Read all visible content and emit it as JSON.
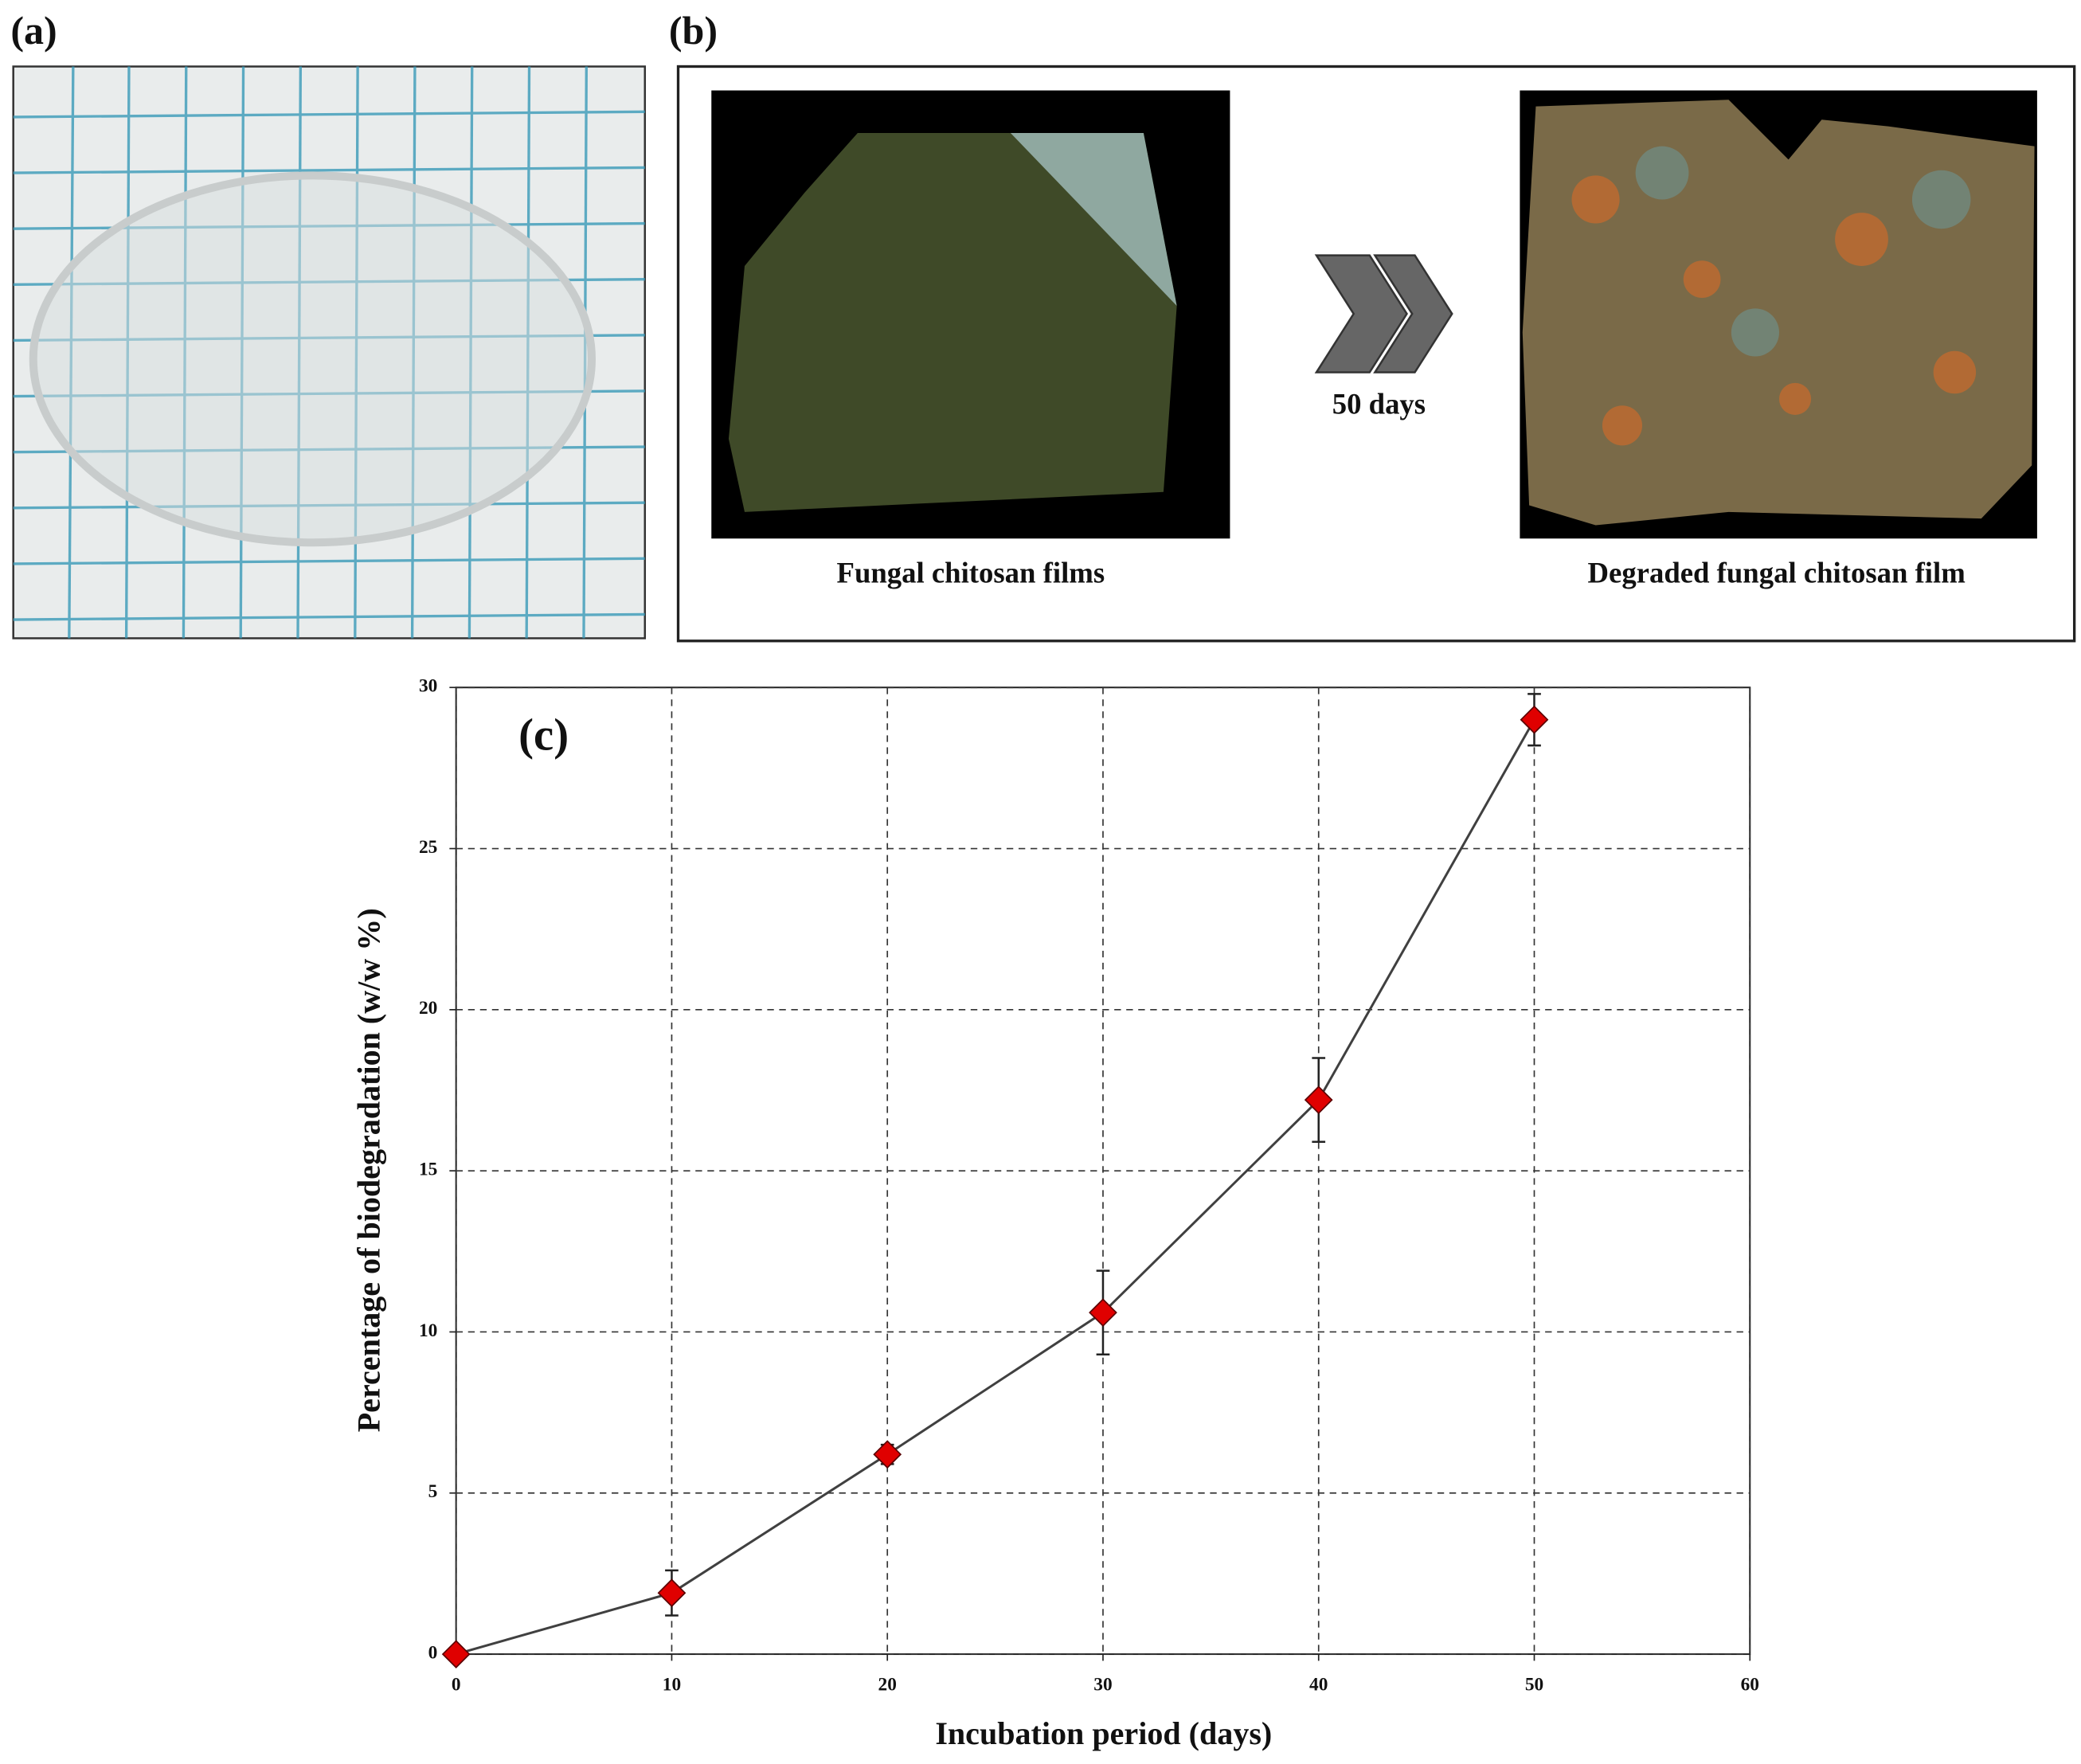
{
  "panels": {
    "a": {
      "label": "(a)"
    },
    "b": {
      "label": "(b)",
      "left_caption": "Fungal chitosan films",
      "arrow_label": "50 days",
      "right_caption": "Degraded fungal chitosan film"
    }
  },
  "chart_data": {
    "type": "line",
    "annotation": "(c)",
    "xlabel": "Incubation period (days)",
    "ylabel": "Percentage of biodegradation (w/w %)",
    "x": [
      0,
      10,
      20,
      30,
      40,
      50
    ],
    "series": [
      {
        "values": [
          0,
          1.9,
          6.2,
          10.6,
          17.2,
          29.0
        ],
        "errors": [
          0,
          0.7,
          0.3,
          1.3,
          1.3,
          0.8
        ],
        "color": "#e00000",
        "line_color": "#404040"
      }
    ],
    "xlim": [
      0,
      60
    ],
    "xticks": [
      0,
      10,
      20,
      30,
      40,
      50,
      60
    ],
    "ylim": [
      0,
      30
    ],
    "yticks": [
      0,
      5,
      10,
      15,
      20,
      25,
      30
    ],
    "grid": true
  }
}
